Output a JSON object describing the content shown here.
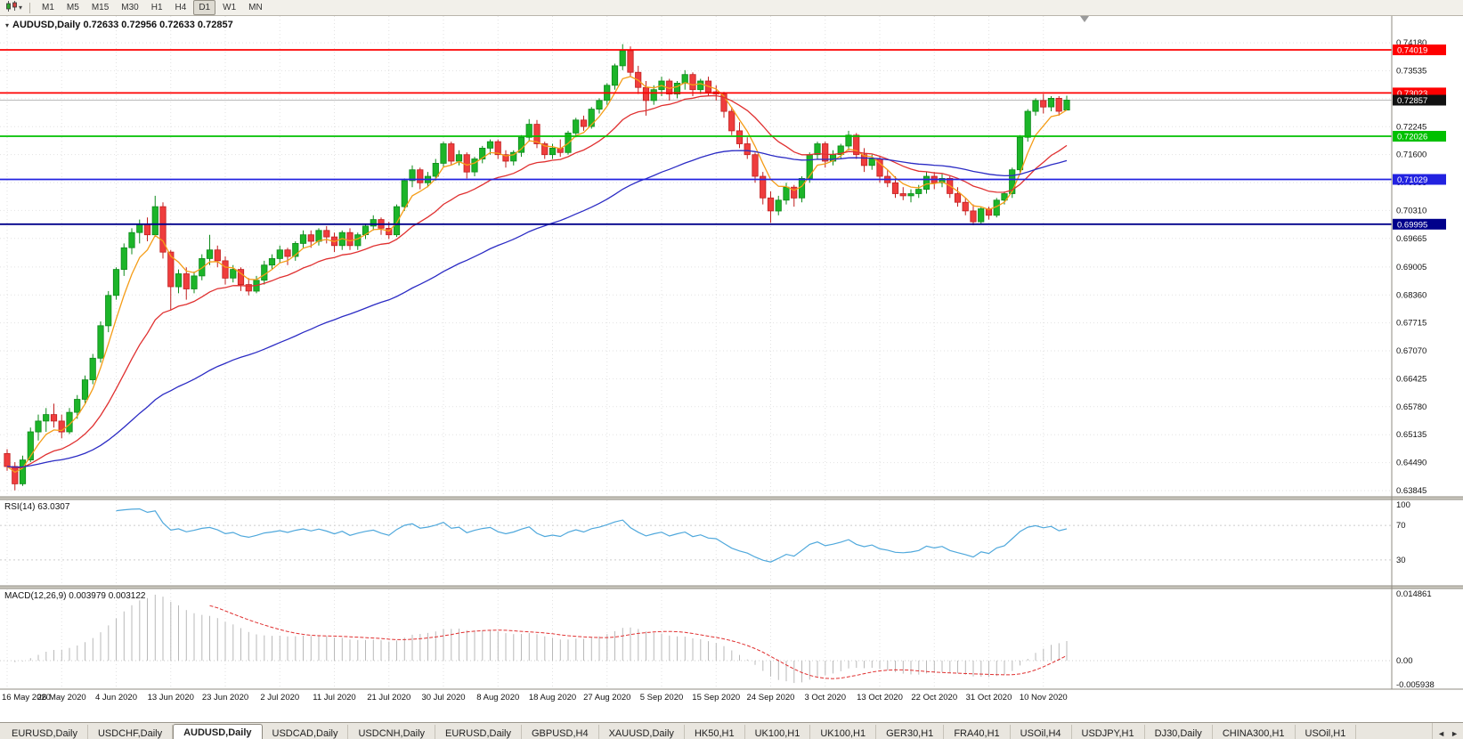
{
  "toolbar": {
    "timeframes": [
      "M1",
      "M5",
      "M15",
      "M30",
      "H1",
      "H4",
      "D1",
      "W1",
      "MN"
    ],
    "active_timeframe": "D1"
  },
  "tabs": {
    "items": [
      "EURUSD,Daily",
      "USDCHF,Daily",
      "AUDUSD,Daily",
      "USDCAD,Daily",
      "USDCNH,Daily",
      "EURUSD,Daily",
      "GBPUSD,H4",
      "XAUUSD,Daily",
      "HK50,H1",
      "UK100,H1",
      "UK100,H1",
      "GER30,H1",
      "FRA40,H1",
      "USOil,H4",
      "USDJPY,H1",
      "DJ30,Daily",
      "CHINA300,H1",
      "USOil,H1"
    ],
    "active_index": 2,
    "scroll_left": "◄",
    "scroll_right": "►"
  },
  "chart_data": {
    "type": "candlestick",
    "symbol": "AUDUSD",
    "timeframe": "Daily",
    "ohlc_label": "AUDUSD,Daily 0.72633 0.72956 0.72633 0.72857",
    "open": "0.72633",
    "high": "0.72956",
    "low": "0.72633",
    "close": "0.72857",
    "y_top": 0.748,
    "y_bottom": 0.637,
    "y_axis_ticks": [
      "0.74180",
      "0.73535",
      "0.72890",
      "0.72245",
      "0.71600",
      "0.70955",
      "0.70310",
      "0.69665",
      "0.69005",
      "0.68360",
      "0.67715",
      "0.67070",
      "0.66425",
      "0.65780",
      "0.65135",
      "0.64490",
      "0.63845"
    ],
    "x_labels": [
      "16 May 2020",
      "26 May 2020",
      "4 Jun 2020",
      "13 Jun 2020",
      "23 Jun 2020",
      "2 Jul 2020",
      "11 Jul 2020",
      "21 Jul 2020",
      "30 Jul 2020",
      "8 Aug 2020",
      "18 Aug 2020",
      "27 Aug 2020",
      "5 Sep 2020",
      "15 Sep 2020",
      "24 Sep 2020",
      "3 Oct 2020",
      "13 Oct 2020",
      "22 Oct 2020",
      "31 Oct 2020",
      "10 Nov 2020"
    ],
    "label_every": 7,
    "candles": [
      [
        0.647,
        0.648,
        0.643,
        0.644
      ],
      [
        0.644,
        0.645,
        0.6385,
        0.64
      ],
      [
        0.64,
        0.6465,
        0.6395,
        0.6455
      ],
      [
        0.6455,
        0.653,
        0.645,
        0.652
      ],
      [
        0.652,
        0.656,
        0.65,
        0.6545
      ],
      [
        0.6545,
        0.6575,
        0.652,
        0.656
      ],
      [
        0.656,
        0.6585,
        0.653,
        0.6545
      ],
      [
        0.6545,
        0.656,
        0.6505,
        0.652
      ],
      [
        0.652,
        0.6575,
        0.6515,
        0.6565
      ],
      [
        0.6565,
        0.6605,
        0.655,
        0.6595
      ],
      [
        0.6595,
        0.665,
        0.6585,
        0.664
      ],
      [
        0.664,
        0.67,
        0.663,
        0.669
      ],
      [
        0.669,
        0.6775,
        0.668,
        0.6765
      ],
      [
        0.6765,
        0.6845,
        0.675,
        0.6835
      ],
      [
        0.6835,
        0.69,
        0.6825,
        0.6895
      ],
      [
        0.6895,
        0.6955,
        0.688,
        0.6945
      ],
      [
        0.6945,
        0.699,
        0.693,
        0.698
      ],
      [
        0.698,
        0.701,
        0.6955,
        0.7
      ],
      [
        0.7,
        0.7015,
        0.696,
        0.6975
      ],
      [
        0.6975,
        0.7065,
        0.697,
        0.704
      ],
      [
        0.704,
        0.705,
        0.692,
        0.6935
      ],
      [
        0.6935,
        0.694,
        0.68,
        0.6855
      ],
      [
        0.6855,
        0.6895,
        0.684,
        0.6885
      ],
      [
        0.6885,
        0.69,
        0.6825,
        0.685
      ],
      [
        0.685,
        0.689,
        0.684,
        0.688
      ],
      [
        0.688,
        0.693,
        0.687,
        0.692
      ],
      [
        0.692,
        0.6975,
        0.6905,
        0.694
      ],
      [
        0.694,
        0.695,
        0.69,
        0.6915
      ],
      [
        0.6915,
        0.6925,
        0.686,
        0.6875
      ],
      [
        0.6875,
        0.6905,
        0.6865,
        0.6895
      ],
      [
        0.6895,
        0.69,
        0.6845,
        0.686
      ],
      [
        0.686,
        0.6875,
        0.6835,
        0.6845
      ],
      [
        0.6845,
        0.688,
        0.684,
        0.687
      ],
      [
        0.687,
        0.6915,
        0.686,
        0.6905
      ],
      [
        0.6905,
        0.693,
        0.6895,
        0.692
      ],
      [
        0.692,
        0.695,
        0.691,
        0.694
      ],
      [
        0.694,
        0.6945,
        0.6905,
        0.6925
      ],
      [
        0.6925,
        0.696,
        0.6915,
        0.6955
      ],
      [
        0.6955,
        0.6985,
        0.6945,
        0.6975
      ],
      [
        0.6975,
        0.6985,
        0.6945,
        0.696
      ],
      [
        0.696,
        0.699,
        0.695,
        0.6985
      ],
      [
        0.6985,
        0.6995,
        0.6955,
        0.697
      ],
      [
        0.697,
        0.698,
        0.6935,
        0.695
      ],
      [
        0.695,
        0.6985,
        0.694,
        0.698
      ],
      [
        0.698,
        0.699,
        0.694,
        0.695
      ],
      [
        0.695,
        0.698,
        0.694,
        0.6975
      ],
      [
        0.6975,
        0.7,
        0.6965,
        0.6995
      ],
      [
        0.6995,
        0.702,
        0.6985,
        0.701
      ],
      [
        0.701,
        0.7015,
        0.6975,
        0.699
      ],
      [
        0.699,
        0.7005,
        0.6965,
        0.6975
      ],
      [
        0.6975,
        0.7045,
        0.697,
        0.704
      ],
      [
        0.704,
        0.7105,
        0.703,
        0.71
      ],
      [
        0.71,
        0.7135,
        0.7085,
        0.7125
      ],
      [
        0.7125,
        0.713,
        0.708,
        0.7095
      ],
      [
        0.7095,
        0.712,
        0.7085,
        0.711
      ],
      [
        0.711,
        0.715,
        0.71,
        0.714
      ],
      [
        0.714,
        0.719,
        0.713,
        0.7185
      ],
      [
        0.7185,
        0.719,
        0.7135,
        0.7145
      ],
      [
        0.7145,
        0.717,
        0.7135,
        0.716
      ],
      [
        0.716,
        0.7165,
        0.7105,
        0.712
      ],
      [
        0.712,
        0.7155,
        0.711,
        0.715
      ],
      [
        0.715,
        0.718,
        0.714,
        0.7175
      ],
      [
        0.7175,
        0.7195,
        0.716,
        0.719
      ],
      [
        0.719,
        0.7195,
        0.715,
        0.716
      ],
      [
        0.716,
        0.717,
        0.713,
        0.7145
      ],
      [
        0.7145,
        0.717,
        0.7135,
        0.7165
      ],
      [
        0.7165,
        0.7205,
        0.7155,
        0.72
      ],
      [
        0.72,
        0.7242,
        0.719,
        0.723
      ],
      [
        0.723,
        0.724,
        0.7175,
        0.7185
      ],
      [
        0.7185,
        0.719,
        0.715,
        0.716
      ],
      [
        0.716,
        0.7185,
        0.715,
        0.7175
      ],
      [
        0.7175,
        0.7195,
        0.7155,
        0.7165
      ],
      [
        0.7165,
        0.7215,
        0.716,
        0.721
      ],
      [
        0.721,
        0.7245,
        0.72,
        0.724
      ],
      [
        0.724,
        0.725,
        0.7215,
        0.7225
      ],
      [
        0.7225,
        0.727,
        0.722,
        0.7265
      ],
      [
        0.7265,
        0.729,
        0.7255,
        0.7285
      ],
      [
        0.7285,
        0.7325,
        0.7275,
        0.732
      ],
      [
        0.732,
        0.737,
        0.731,
        0.7365
      ],
      [
        0.7365,
        0.7415,
        0.7355,
        0.74
      ],
      [
        0.74,
        0.741,
        0.734,
        0.735
      ],
      [
        0.735,
        0.7365,
        0.73,
        0.7315
      ],
      [
        0.7315,
        0.733,
        0.725,
        0.7285
      ],
      [
        0.7285,
        0.732,
        0.7275,
        0.731
      ],
      [
        0.731,
        0.734,
        0.7295,
        0.733
      ],
      [
        0.733,
        0.7335,
        0.7285,
        0.73
      ],
      [
        0.73,
        0.733,
        0.729,
        0.7325
      ],
      [
        0.7325,
        0.7355,
        0.731,
        0.7345
      ],
      [
        0.7345,
        0.735,
        0.7295,
        0.731
      ],
      [
        0.731,
        0.7335,
        0.73,
        0.733
      ],
      [
        0.733,
        0.734,
        0.7295,
        0.7305
      ],
      [
        0.7305,
        0.732,
        0.7285,
        0.73
      ],
      [
        0.73,
        0.7305,
        0.7245,
        0.726
      ],
      [
        0.726,
        0.727,
        0.7205,
        0.7215
      ],
      [
        0.7215,
        0.7235,
        0.7175,
        0.7185
      ],
      [
        0.7185,
        0.72,
        0.715,
        0.716
      ],
      [
        0.716,
        0.7165,
        0.7095,
        0.711
      ],
      [
        0.711,
        0.712,
        0.7045,
        0.706
      ],
      [
        0.706,
        0.7075,
        0.7003,
        0.703
      ],
      [
        0.703,
        0.7065,
        0.702,
        0.7055
      ],
      [
        0.7055,
        0.7095,
        0.7045,
        0.7085
      ],
      [
        0.7085,
        0.709,
        0.704,
        0.706
      ],
      [
        0.706,
        0.711,
        0.705,
        0.7105
      ],
      [
        0.7105,
        0.7165,
        0.7095,
        0.716
      ],
      [
        0.716,
        0.719,
        0.715,
        0.7185
      ],
      [
        0.7185,
        0.719,
        0.713,
        0.7145
      ],
      [
        0.7145,
        0.717,
        0.7135,
        0.716
      ],
      [
        0.716,
        0.7185,
        0.715,
        0.718
      ],
      [
        0.718,
        0.7215,
        0.717,
        0.7205
      ],
      [
        0.7205,
        0.721,
        0.715,
        0.716
      ],
      [
        0.716,
        0.7175,
        0.712,
        0.7135
      ],
      [
        0.7135,
        0.716,
        0.7125,
        0.715
      ],
      [
        0.715,
        0.7155,
        0.7095,
        0.711
      ],
      [
        0.711,
        0.7125,
        0.7085,
        0.7095
      ],
      [
        0.7095,
        0.711,
        0.706,
        0.707
      ],
      [
        0.707,
        0.7085,
        0.7055,
        0.7065
      ],
      [
        0.7065,
        0.708,
        0.705,
        0.707
      ],
      [
        0.707,
        0.709,
        0.706,
        0.708
      ],
      [
        0.708,
        0.712,
        0.707,
        0.711
      ],
      [
        0.711,
        0.712,
        0.708,
        0.7095
      ],
      [
        0.7095,
        0.7115,
        0.7085,
        0.7105
      ],
      [
        0.7105,
        0.711,
        0.706,
        0.707
      ],
      [
        0.707,
        0.7085,
        0.704,
        0.705
      ],
      [
        0.705,
        0.706,
        0.702,
        0.703
      ],
      [
        0.703,
        0.7045,
        0.6997,
        0.7005
      ],
      [
        0.7005,
        0.704,
        0.7,
        0.7035
      ],
      [
        0.7035,
        0.704,
        0.701,
        0.702
      ],
      [
        0.702,
        0.706,
        0.7015,
        0.7055
      ],
      [
        0.7055,
        0.7075,
        0.7045,
        0.707
      ],
      [
        0.707,
        0.713,
        0.706,
        0.7125
      ],
      [
        0.7125,
        0.7205,
        0.7115,
        0.72
      ],
      [
        0.72,
        0.7265,
        0.719,
        0.726
      ],
      [
        0.726,
        0.729,
        0.725,
        0.7285
      ],
      [
        0.7285,
        0.73,
        0.7255,
        0.727
      ],
      [
        0.727,
        0.7295,
        0.726,
        0.729
      ],
      [
        0.729,
        0.7295,
        0.725,
        0.726
      ],
      [
        0.7263,
        0.7296,
        0.7263,
        0.7286
      ]
    ],
    "colors": {
      "bull": "#1cb529",
      "bull_border": "#0d8a1a",
      "bear": "#ef3d3d",
      "bear_border": "#c11f1f",
      "grid": "#e2e2e2",
      "axis_text": "#111111",
      "background": "#ffffff"
    },
    "moving_averages": [
      {
        "period": 5,
        "color": "#f59d18",
        "name": "fast-ma"
      },
      {
        "period": 18,
        "color": "#e03030",
        "name": "mid-ma"
      },
      {
        "period": 55,
        "color": "#2b2bc4",
        "name": "slow-ma"
      }
    ],
    "hlines": [
      {
        "price": 0.74019,
        "label": "0.74019",
        "color": "#fe0000"
      },
      {
        "price": 0.73023,
        "label": "0.73023",
        "color": "#fe0000"
      },
      {
        "price": 0.72026,
        "label": "0.72026",
        "color": "#00c000"
      },
      {
        "price": 0.71029,
        "label": "0.71029",
        "color": "#2222e0"
      },
      {
        "price": 0.69995,
        "label": "0.69995",
        "color": "#00008b"
      }
    ],
    "current_price": {
      "value": 0.72857,
      "label": "0.72857",
      "badge_color": "#111111",
      "line_color": "#bbbbbb"
    },
    "rsi": {
      "label": "RSI(14)",
      "value": "63.0307",
      "display": "RSI(14) 63.0307",
      "period": 14,
      "color": "#4fa8dc",
      "levels": [
        70,
        30
      ],
      "axis_labels": [
        "100",
        "70",
        "30"
      ]
    },
    "macd": {
      "label": "MACD(12,26,9)",
      "values": "0.003979 0.003122",
      "display": "MACD(12,26,9) 0.003979 0.003122",
      "fast": 12,
      "slow": 26,
      "signal": 9,
      "hist_color": "#b9b9b9",
      "signal_color": "#e03030",
      "axis_labels": {
        "top": "0.014861",
        "zero": "0.00",
        "bottom": "-0.005938"
      }
    }
  }
}
